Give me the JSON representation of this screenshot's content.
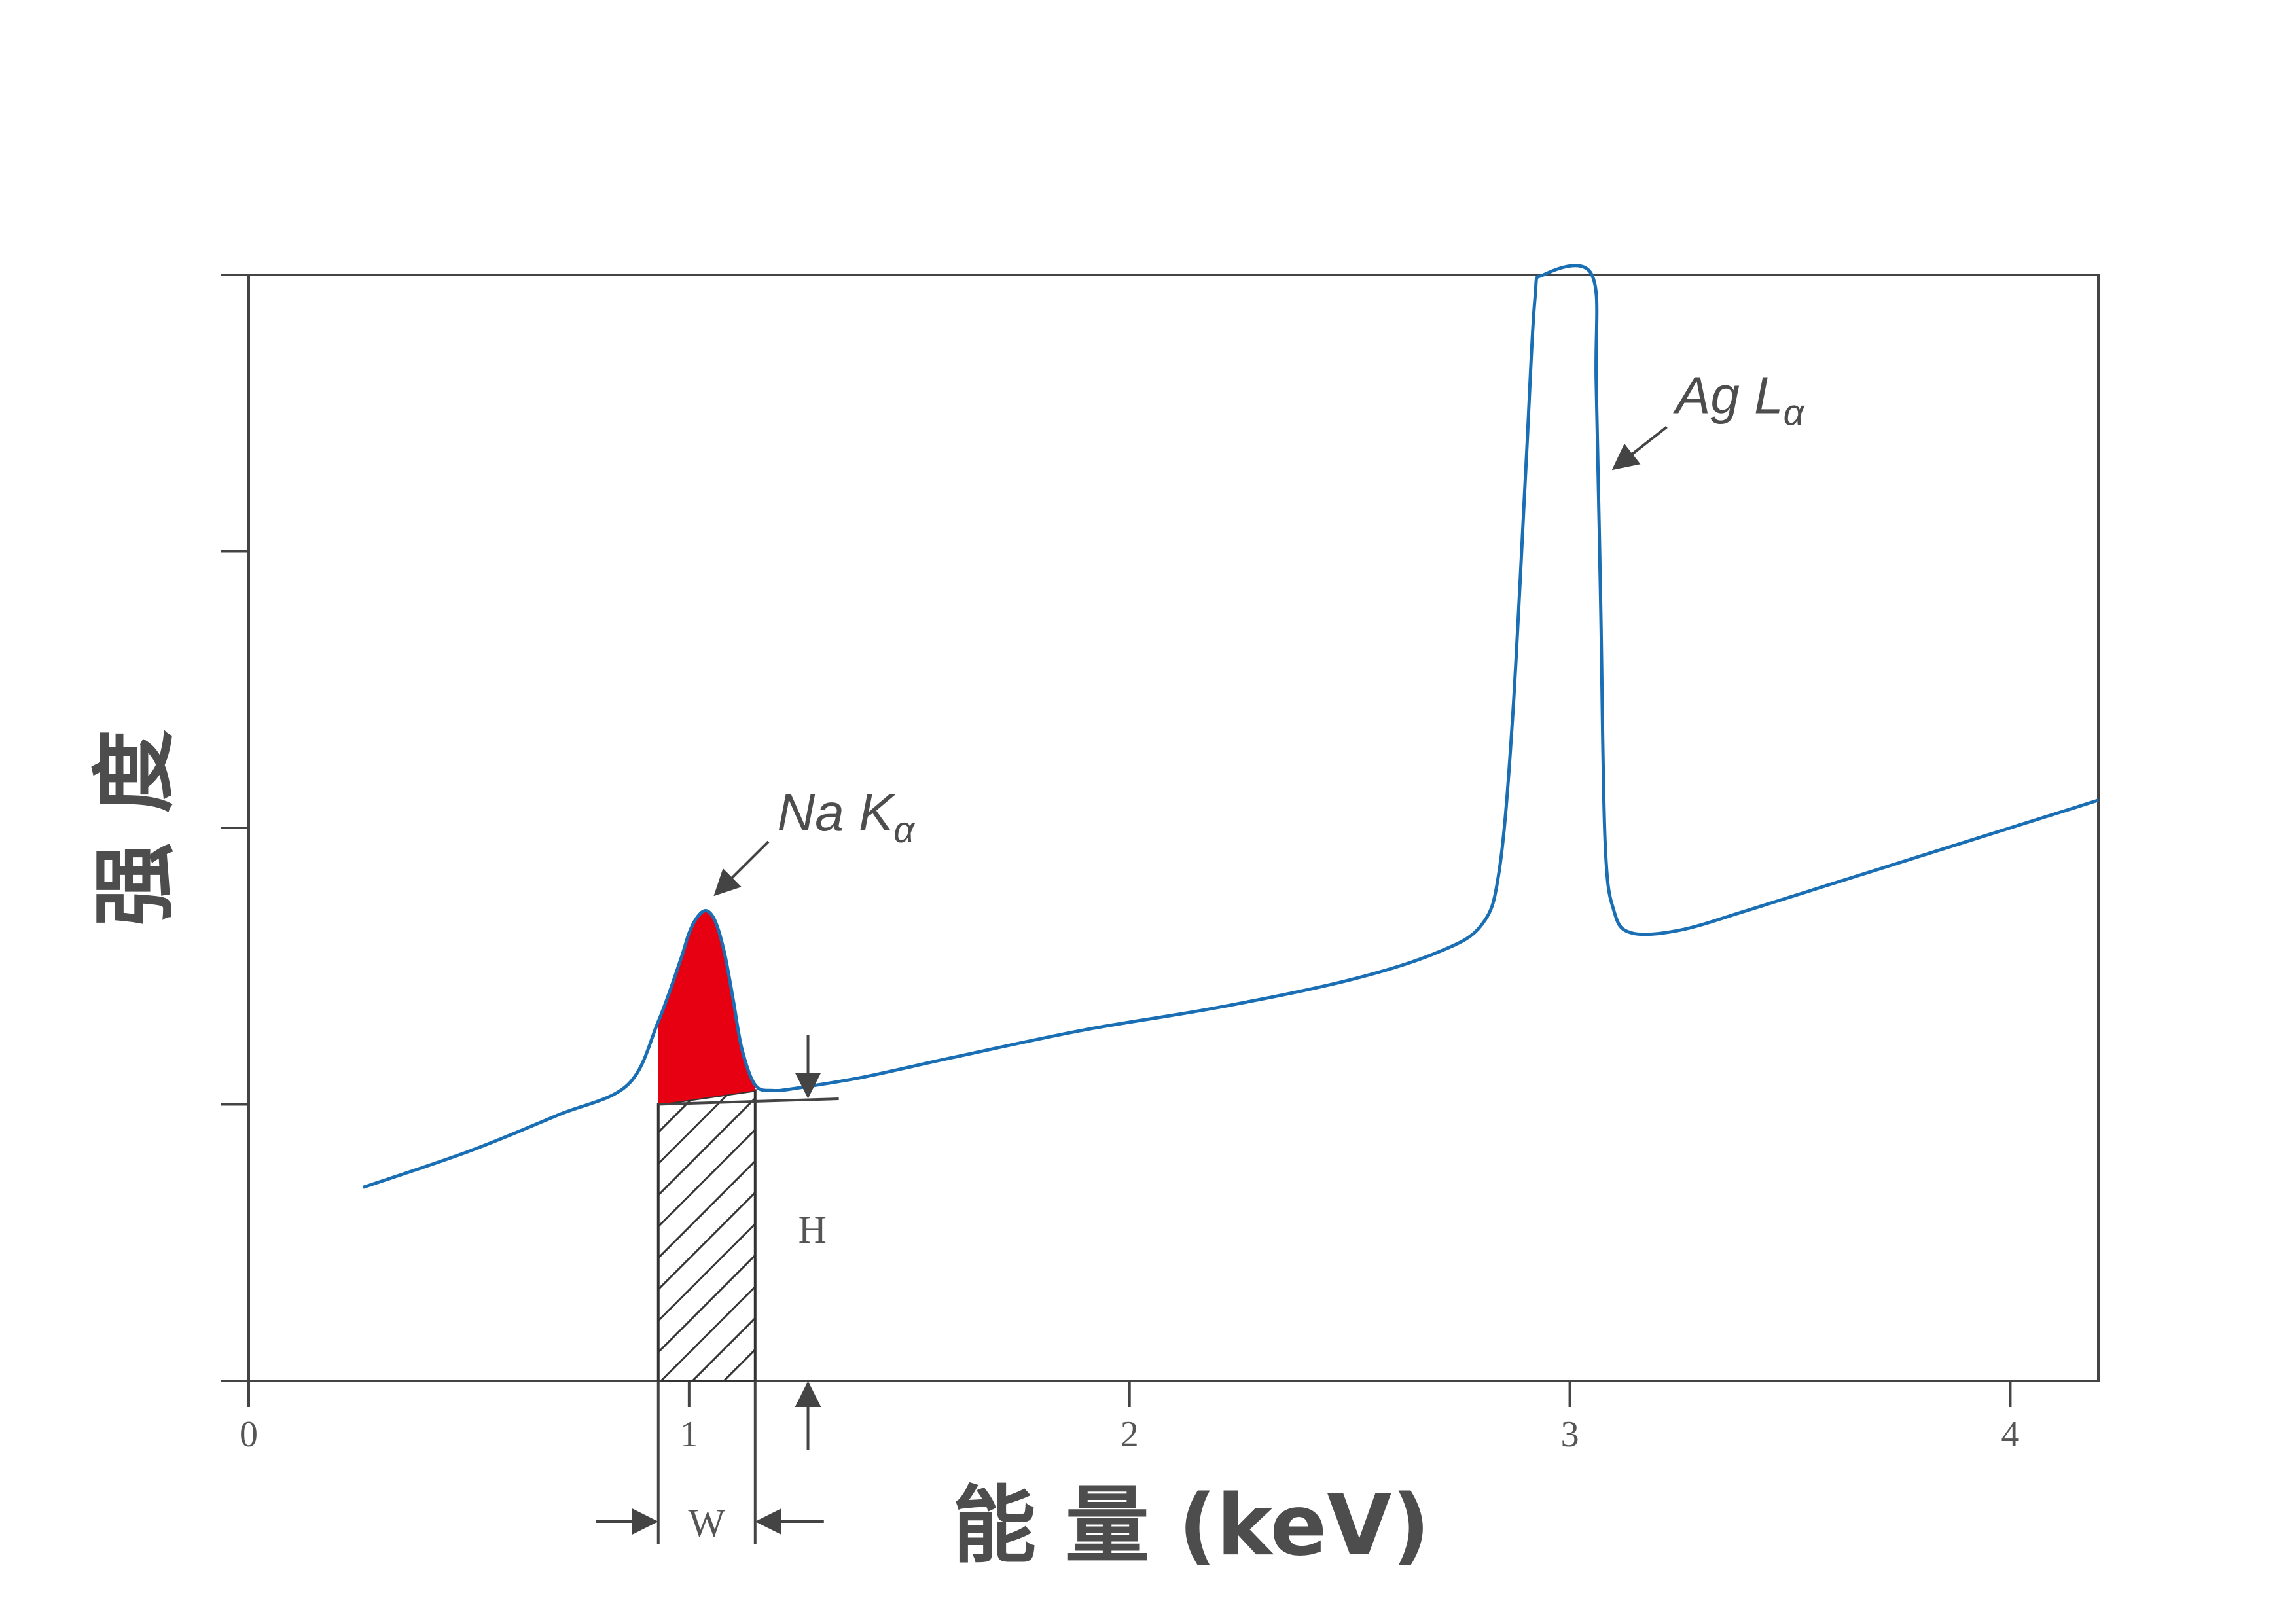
{
  "chart_data": {
    "type": "line",
    "title": "",
    "xlabel": "能 量 (keV)",
    "ylabel": "强 度",
    "xlim": [
      0,
      4.2
    ],
    "ylim": [
      0,
      4
    ],
    "x_ticks": [
      0,
      1,
      2,
      3,
      4
    ],
    "y_ticks": [
      0,
      1,
      2,
      3,
      4
    ],
    "y_tick_labels_shown": false,
    "grid": false,
    "series": [
      {
        "color": "#1a6fb4",
        "x": [
          0.26,
          0.5,
          0.7,
          0.86,
          0.93,
          0.98,
          1.0,
          1.02,
          1.04,
          1.06,
          1.08,
          1.1,
          1.12,
          1.15,
          1.19,
          1.25,
          1.4,
          1.6,
          1.9,
          2.2,
          2.5,
          2.7,
          2.8,
          2.84,
          2.87,
          2.9,
          2.92,
          2.94,
          3.05,
          3.06,
          3.07,
          3.08,
          3.1,
          3.14,
          3.25,
          3.4,
          3.6,
          3.8,
          4.0,
          4.2
        ],
        "y": [
          0.7,
          0.83,
          0.96,
          1.07,
          1.3,
          1.52,
          1.62,
          1.68,
          1.7,
          1.66,
          1.55,
          1.38,
          1.2,
          1.07,
          1.05,
          1.06,
          1.1,
          1.17,
          1.27,
          1.35,
          1.45,
          1.55,
          1.65,
          1.85,
          2.4,
          3.3,
          3.9,
          4.0,
          4.0,
          3.6,
          2.8,
          1.95,
          1.7,
          1.62,
          1.63,
          1.7,
          1.8,
          1.9,
          2.0,
          2.1
        ]
      }
    ],
    "peak_region": {
      "x_start": 0.93,
      "x_end": 1.15,
      "fill": "#e60012"
    },
    "background_region": {
      "x_start": 0.93,
      "x_end": 1.15,
      "pattern": "hatched"
    },
    "annotations": [
      {
        "label": "Na",
        "line": "K",
        "subscript": "α",
        "x": 1.04,
        "y": 1.7
      },
      {
        "label": "Ag",
        "line": "L",
        "subscript": "α",
        "x": 3.07,
        "y": 3.35
      }
    ],
    "dimension_labels": {
      "width": "W",
      "height": "H"
    }
  },
  "labels": {
    "x_ticks": [
      "0",
      "1",
      "2",
      "3",
      "4"
    ],
    "xlabel": "能 量 (keV)",
    "ylabel": "强 度",
    "na_label": "Na K",
    "ag_label": "Ag L",
    "sub": "α",
    "w": "W",
    "h": "H"
  },
  "colors": {
    "curve": "#1a6fb4",
    "peak_fill": "#e60012",
    "axis": "#444444",
    "text": "#4d4d4d"
  }
}
